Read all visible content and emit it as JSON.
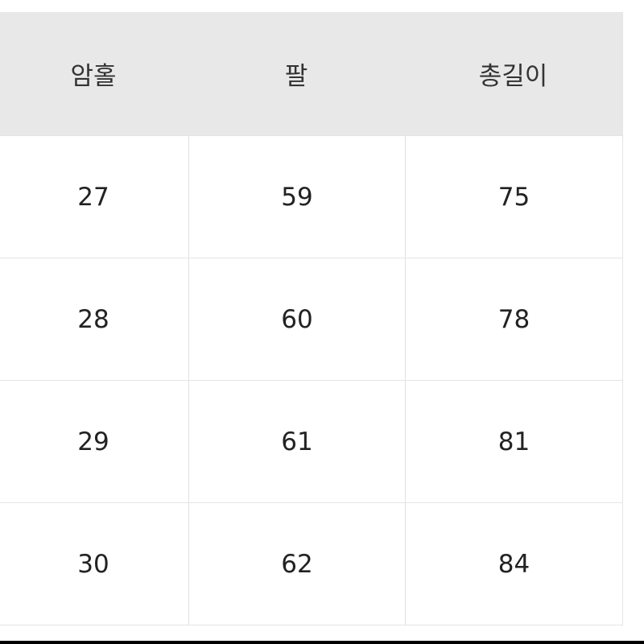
{
  "table": {
    "headers": [
      "암홀",
      "팔",
      "총길이"
    ],
    "rows": [
      [
        "27",
        "59",
        "75"
      ],
      [
        "28",
        "60",
        "78"
      ],
      [
        "29",
        "61",
        "81"
      ],
      [
        "30",
        "62",
        "84"
      ]
    ]
  }
}
